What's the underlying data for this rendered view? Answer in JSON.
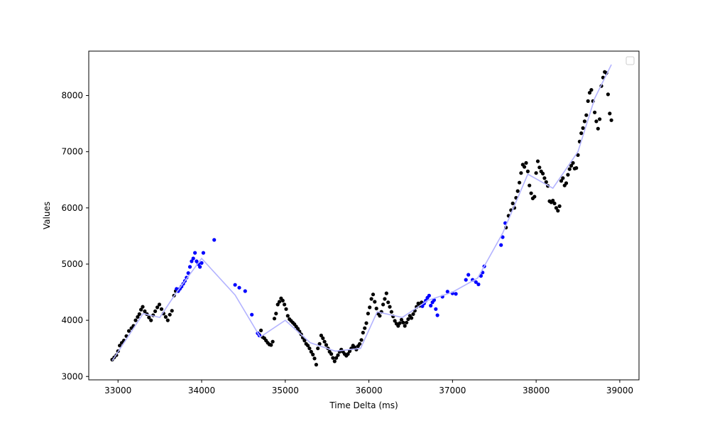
{
  "chart_data": {
    "type": "scatter",
    "title": "",
    "xlabel": "Time Delta (ms)",
    "ylabel": "Values",
    "xlim": [
      32650,
      39230
    ],
    "ylim": [
      2940,
      8790
    ],
    "xticks": [
      33000,
      34000,
      35000,
      36000,
      37000,
      38000,
      39000
    ],
    "yticks": [
      3000,
      4000,
      5000,
      6000,
      7000,
      8000
    ],
    "grid": false,
    "legend": "top-right",
    "colors": {
      "primary": "#000000",
      "secondary": "#0000ff",
      "trend": "#b3b3ff"
    },
    "series": [
      {
        "values_color": "primary",
        "points": [
          [
            32930,
            3300
          ],
          [
            32955,
            3340
          ],
          [
            32980,
            3380
          ],
          [
            33000,
            3450
          ],
          [
            33020,
            3550
          ],
          [
            33045,
            3600
          ],
          [
            33070,
            3640
          ],
          [
            33100,
            3720
          ],
          [
            33130,
            3810
          ],
          [
            33160,
            3860
          ],
          [
            33185,
            3900
          ],
          [
            33210,
            4000
          ],
          [
            33235,
            4060
          ],
          [
            33255,
            4110
          ],
          [
            33275,
            4190
          ],
          [
            33295,
            4240
          ],
          [
            33320,
            4160
          ],
          [
            33345,
            4110
          ],
          [
            33370,
            4050
          ],
          [
            33395,
            4000
          ],
          [
            33420,
            4090
          ],
          [
            33445,
            4160
          ],
          [
            33470,
            4230
          ],
          [
            33495,
            4280
          ],
          [
            33520,
            4200
          ],
          [
            33545,
            4120
          ],
          [
            33570,
            4060
          ],
          [
            33595,
            4000
          ],
          [
            33620,
            4100
          ],
          [
            33645,
            4170
          ],
          [
            33670,
            4440
          ],
          [
            33690,
            4520
          ],
          [
            34690,
            3740
          ],
          [
            34710,
            3820
          ],
          [
            34730,
            3700
          ],
          [
            34750,
            3680
          ],
          [
            34770,
            3640
          ],
          [
            34790,
            3600
          ],
          [
            34810,
            3570
          ],
          [
            34830,
            3560
          ],
          [
            34850,
            3620
          ],
          [
            34870,
            4030
          ],
          [
            34890,
            4120
          ],
          [
            34910,
            4280
          ],
          [
            34930,
            4330
          ],
          [
            34950,
            4390
          ],
          [
            34970,
            4350
          ],
          [
            34990,
            4280
          ],
          [
            35010,
            4200
          ],
          [
            35030,
            4080
          ],
          [
            35050,
            4020
          ],
          [
            35070,
            3990
          ],
          [
            35090,
            3960
          ],
          [
            35110,
            3930
          ],
          [
            35130,
            3890
          ],
          [
            35150,
            3850
          ],
          [
            35170,
            3800
          ],
          [
            35190,
            3750
          ],
          [
            35210,
            3690
          ],
          [
            35230,
            3640
          ],
          [
            35250,
            3580
          ],
          [
            35270,
            3550
          ],
          [
            35290,
            3500
          ],
          [
            35310,
            3440
          ],
          [
            35330,
            3390
          ],
          [
            35350,
            3320
          ],
          [
            35370,
            3210
          ],
          [
            35390,
            3500
          ],
          [
            35410,
            3580
          ],
          [
            35430,
            3730
          ],
          [
            35450,
            3680
          ],
          [
            35470,
            3620
          ],
          [
            35490,
            3560
          ],
          [
            35510,
            3500
          ],
          [
            35530,
            3440
          ],
          [
            35550,
            3400
          ],
          [
            35570,
            3330
          ],
          [
            35590,
            3270
          ],
          [
            35610,
            3330
          ],
          [
            35630,
            3380
          ],
          [
            35650,
            3440
          ],
          [
            35670,
            3480
          ],
          [
            35690,
            3440
          ],
          [
            35710,
            3400
          ],
          [
            35730,
            3370
          ],
          [
            35750,
            3400
          ],
          [
            35770,
            3450
          ],
          [
            35790,
            3500
          ],
          [
            35810,
            3550
          ],
          [
            35830,
            3520
          ],
          [
            35850,
            3480
          ],
          [
            35870,
            3540
          ],
          [
            35890,
            3580
          ],
          [
            35910,
            3650
          ],
          [
            35930,
            3780
          ],
          [
            35950,
            3860
          ],
          [
            35970,
            3950
          ],
          [
            35990,
            4120
          ],
          [
            36010,
            4230
          ],
          [
            36030,
            4380
          ],
          [
            36050,
            4460
          ],
          [
            36070,
            4330
          ],
          [
            36090,
            4210
          ],
          [
            36110,
            4120
          ],
          [
            36130,
            4080
          ],
          [
            36150,
            4150
          ],
          [
            36170,
            4280
          ],
          [
            36190,
            4380
          ],
          [
            36210,
            4480
          ],
          [
            36230,
            4320
          ],
          [
            36250,
            4240
          ],
          [
            36270,
            4150
          ],
          [
            36290,
            4070
          ],
          [
            36310,
            3990
          ],
          [
            36330,
            3940
          ],
          [
            36350,
            3900
          ],
          [
            36370,
            3950
          ],
          [
            36390,
            4010
          ],
          [
            36410,
            3960
          ],
          [
            36430,
            3900
          ],
          [
            36450,
            3960
          ],
          [
            36470,
            4020
          ],
          [
            36490,
            4080
          ],
          [
            36510,
            4040
          ],
          [
            36530,
            4110
          ],
          [
            36550,
            4170
          ],
          [
            36570,
            4240
          ],
          [
            36590,
            4300
          ],
          [
            36610,
            4260
          ],
          [
            36630,
            4320
          ],
          [
            37640,
            5650
          ],
          [
            37670,
            5860
          ],
          [
            37700,
            5960
          ],
          [
            37720,
            6080
          ],
          [
            37740,
            6000
          ],
          [
            37760,
            6180
          ],
          [
            37780,
            6300
          ],
          [
            37800,
            6450
          ],
          [
            37820,
            6620
          ],
          [
            37840,
            6770
          ],
          [
            37860,
            6730
          ],
          [
            37880,
            6800
          ],
          [
            37900,
            6650
          ],
          [
            37920,
            6400
          ],
          [
            37940,
            6260
          ],
          [
            37960,
            6170
          ],
          [
            37980,
            6200
          ],
          [
            38000,
            6620
          ],
          [
            38020,
            6830
          ],
          [
            38040,
            6720
          ],
          [
            38060,
            6650
          ],
          [
            38080,
            6610
          ],
          [
            38100,
            6530
          ],
          [
            38120,
            6460
          ],
          [
            38140,
            6390
          ],
          [
            38160,
            6120
          ],
          [
            38180,
            6100
          ],
          [
            38200,
            6130
          ],
          [
            38220,
            6080
          ],
          [
            38240,
            6000
          ],
          [
            38260,
            5950
          ],
          [
            38280,
            6030
          ],
          [
            38300,
            6480
          ],
          [
            38320,
            6530
          ],
          [
            38340,
            6400
          ],
          [
            38360,
            6440
          ],
          [
            38380,
            6590
          ],
          [
            38400,
            6690
          ],
          [
            38420,
            6750
          ],
          [
            38440,
            6800
          ],
          [
            38460,
            6700
          ],
          [
            38480,
            6710
          ],
          [
            38500,
            6940
          ],
          [
            38520,
            7180
          ],
          [
            38540,
            7330
          ],
          [
            38560,
            7420
          ],
          [
            38580,
            7540
          ],
          [
            38600,
            7650
          ],
          [
            38620,
            7900
          ],
          [
            38640,
            8050
          ],
          [
            38660,
            8100
          ],
          [
            38680,
            7900
          ],
          [
            38700,
            7700
          ],
          [
            38720,
            7540
          ],
          [
            38740,
            7410
          ],
          [
            38760,
            7580
          ],
          [
            38780,
            8170
          ],
          [
            38800,
            8320
          ],
          [
            38820,
            8420
          ],
          [
            38840,
            8400
          ],
          [
            38860,
            8020
          ],
          [
            38880,
            7680
          ],
          [
            38900,
            7560
          ]
        ]
      },
      {
        "values_color": "secondary",
        "points": [
          [
            33700,
            4560
          ],
          [
            33720,
            4520
          ],
          [
            33740,
            4560
          ],
          [
            33760,
            4600
          ],
          [
            33780,
            4650
          ],
          [
            33800,
            4700
          ],
          [
            33820,
            4760
          ],
          [
            33840,
            4840
          ],
          [
            33860,
            4950
          ],
          [
            33880,
            5050
          ],
          [
            33900,
            5100
          ],
          [
            33920,
            5200
          ],
          [
            33940,
            5050
          ],
          [
            33960,
            5000
          ],
          [
            33980,
            4950
          ],
          [
            34000,
            5020
          ],
          [
            34020,
            5200
          ],
          [
            34150,
            5430
          ],
          [
            34400,
            4630
          ],
          [
            34450,
            4580
          ],
          [
            34520,
            4520
          ],
          [
            34600,
            4100
          ],
          [
            34670,
            3770
          ],
          [
            34690,
            3730
          ],
          [
            36640,
            4250
          ],
          [
            36660,
            4300
          ],
          [
            36680,
            4350
          ],
          [
            36700,
            4400
          ],
          [
            36720,
            4440
          ],
          [
            36740,
            4260
          ],
          [
            36760,
            4320
          ],
          [
            36780,
            4360
          ],
          [
            36800,
            4200
          ],
          [
            36820,
            4090
          ],
          [
            36880,
            4420
          ],
          [
            36940,
            4510
          ],
          [
            37000,
            4480
          ],
          [
            37040,
            4470
          ],
          [
            37160,
            4720
          ],
          [
            37190,
            4810
          ],
          [
            37240,
            4720
          ],
          [
            37280,
            4680
          ],
          [
            37310,
            4640
          ],
          [
            37340,
            4790
          ],
          [
            37360,
            4850
          ],
          [
            37380,
            4960
          ],
          [
            37580,
            5340
          ],
          [
            37600,
            5480
          ],
          [
            37630,
            5730
          ]
        ]
      }
    ],
    "trend": {
      "x": [
        32930,
        33300,
        33500,
        33700,
        34000,
        34400,
        34700,
        35000,
        35300,
        35600,
        35900,
        36100,
        36400,
        36700,
        37000,
        37300,
        37600,
        37900,
        38200,
        38500,
        38700,
        38900
      ],
      "y": [
        3280,
        4120,
        4050,
        4500,
        5100,
        4450,
        3700,
        4000,
        3600,
        3450,
        3500,
        4150,
        4050,
        4350,
        4500,
        4750,
        5550,
        6600,
        6350,
        7000,
        7950,
        8550
      ]
    }
  }
}
